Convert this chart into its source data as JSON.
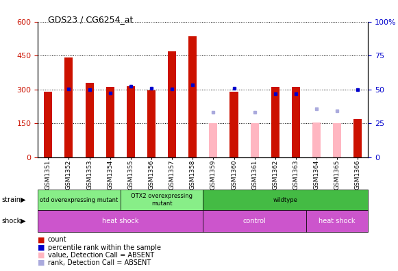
{
  "title": "GDS23 / CG6254_at",
  "samples": [
    "GSM1351",
    "GSM1352",
    "GSM1353",
    "GSM1354",
    "GSM1355",
    "GSM1356",
    "GSM1357",
    "GSM1358",
    "GSM1359",
    "GSM1360",
    "GSM1361",
    "GSM1362",
    "GSM1363",
    "GSM1364",
    "GSM1365",
    "GSM1366"
  ],
  "count_values": [
    290,
    440,
    330,
    310,
    315,
    295,
    470,
    535,
    null,
    290,
    null,
    310,
    310,
    null,
    null,
    170
  ],
  "rank_values": [
    null,
    302,
    300,
    285,
    315,
    305,
    302,
    320,
    null,
    305,
    null,
    282,
    282,
    null,
    null,
    300
  ],
  "absent_value": [
    null,
    null,
    null,
    null,
    null,
    null,
    null,
    null,
    150,
    null,
    150,
    null,
    null,
    155,
    150,
    null
  ],
  "absent_rank": [
    null,
    null,
    null,
    null,
    null,
    null,
    null,
    null,
    200,
    null,
    200,
    null,
    null,
    215,
    205,
    null
  ],
  "ylim_left": [
    0,
    600
  ],
  "ylim_right": [
    0,
    100
  ],
  "yticks_left": [
    0,
    150,
    300,
    450,
    600
  ],
  "yticks_right": [
    0,
    25,
    50,
    75,
    100
  ],
  "bar_width": 0.4,
  "count_color": "#CC1100",
  "rank_color": "#0000CC",
  "absent_value_color": "#FFB6C1",
  "absent_rank_color": "#AAAADD",
  "bg_color": "#FFFFFF",
  "left_tick_color": "#CC1100",
  "right_tick_color": "#0000CC",
  "strain_groups": [
    {
      "label": "otd overexpressing mutant",
      "start": 0,
      "end": 4,
      "color": "#88EE88"
    },
    {
      "label": "OTX2 overexpressing\nmutant",
      "start": 4,
      "end": 8,
      "color": "#88EE88"
    },
    {
      "label": "wildtype",
      "start": 8,
      "end": 16,
      "color": "#44BB44"
    }
  ],
  "shock_groups": [
    {
      "label": "heat shock",
      "start": 0,
      "end": 8,
      "color": "#CC55CC"
    },
    {
      "label": "control",
      "start": 8,
      "end": 13,
      "color": "#CC55CC"
    },
    {
      "label": "heat shock",
      "start": 13,
      "end": 16,
      "color": "#CC55CC"
    }
  ]
}
